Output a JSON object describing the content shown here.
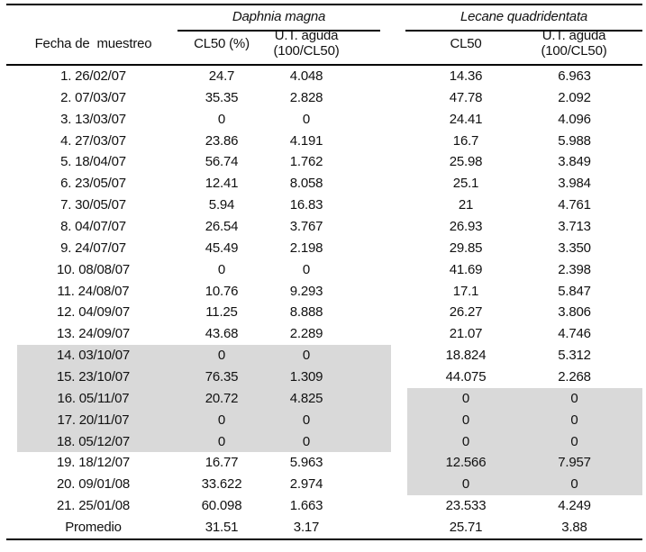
{
  "table": {
    "headers": {
      "date": "Fecha de  muestreo",
      "daphnia": {
        "name": "Daphnia magna",
        "cl50": "CL50 (%)",
        "ut_line1": "U.T. aguda",
        "ut_line2": "(100/CL50)"
      },
      "lecane": {
        "name": "Lecane quadridentata",
        "cl50": "CL50",
        "ut_line1": "U.T. aguda",
        "ut_line2": "(100/CL50)"
      }
    },
    "colors": {
      "highlight": "#d9d9d9",
      "rule": "#000000",
      "text": "#111111"
    },
    "rows": [
      {
        "date": "1. 26/02/07",
        "d_cl50": "24.7",
        "d_ut": "4.048",
        "l_cl50": "14.36",
        "l_ut": "6.963",
        "hl_left": false,
        "hl_right": false
      },
      {
        "date": "2. 07/03/07",
        "d_cl50": "35.35",
        "d_ut": "2.828",
        "l_cl50": "47.78",
        "l_ut": "2.092",
        "hl_left": false,
        "hl_right": false
      },
      {
        "date": "3. 13/03/07",
        "d_cl50": "0",
        "d_ut": "0",
        "l_cl50": "24.41",
        "l_ut": "4.096",
        "hl_left": false,
        "hl_right": false
      },
      {
        "date": "4. 27/03/07",
        "d_cl50": "23.86",
        "d_ut": "4.191",
        "l_cl50": "16.7",
        "l_ut": "5.988",
        "hl_left": false,
        "hl_right": false
      },
      {
        "date": "5. 18/04/07",
        "d_cl50": "56.74",
        "d_ut": "1.762",
        "l_cl50": "25.98",
        "l_ut": "3.849",
        "hl_left": false,
        "hl_right": false
      },
      {
        "date": "6. 23/05/07",
        "d_cl50": "12.41",
        "d_ut": "8.058",
        "l_cl50": "25.1",
        "l_ut": "3.984",
        "hl_left": false,
        "hl_right": false
      },
      {
        "date": "7. 30/05/07",
        "d_cl50": "5.94",
        "d_ut": "16.83",
        "l_cl50": "21",
        "l_ut": "4.761",
        "hl_left": false,
        "hl_right": false
      },
      {
        "date": "8. 04/07/07",
        "d_cl50": "26.54",
        "d_ut": "3.767",
        "l_cl50": "26.93",
        "l_ut": "3.713",
        "hl_left": false,
        "hl_right": false
      },
      {
        "date": "9. 24/07/07",
        "d_cl50": "45.49",
        "d_ut": "2.198",
        "l_cl50": "29.85",
        "l_ut": "3.350",
        "hl_left": false,
        "hl_right": false
      },
      {
        "date": "10. 08/08/07",
        "d_cl50": "0",
        "d_ut": "0",
        "l_cl50": "41.69",
        "l_ut": "2.398",
        "hl_left": false,
        "hl_right": false
      },
      {
        "date": "11. 24/08/07",
        "d_cl50": "10.76",
        "d_ut": "9.293",
        "l_cl50": "17.1",
        "l_ut": "5.847",
        "hl_left": false,
        "hl_right": false
      },
      {
        "date": "12. 04/09/07",
        "d_cl50": "11.25",
        "d_ut": "8.888",
        "l_cl50": "26.27",
        "l_ut": "3.806",
        "hl_left": false,
        "hl_right": false
      },
      {
        "date": "13. 24/09/07",
        "d_cl50": "43.68",
        "d_ut": "2.289",
        "l_cl50": "21.07",
        "l_ut": "4.746",
        "hl_left": false,
        "hl_right": false
      },
      {
        "date": "14. 03/10/07",
        "d_cl50": "0",
        "d_ut": "0",
        "l_cl50": "18.824",
        "l_ut": "5.312",
        "hl_left": true,
        "hl_right": false
      },
      {
        "date": "15. 23/10/07",
        "d_cl50": "76.35",
        "d_ut": "1.309",
        "l_cl50": "44.075",
        "l_ut": "2.268",
        "hl_left": true,
        "hl_right": false
      },
      {
        "date": "16. 05/11/07",
        "d_cl50": "20.72",
        "d_ut": "4.825",
        "l_cl50": "0",
        "l_ut": "0",
        "hl_left": true,
        "hl_right": true
      },
      {
        "date": "17. 20/11/07",
        "d_cl50": "0",
        "d_ut": "0",
        "l_cl50": "0",
        "l_ut": "0",
        "hl_left": true,
        "hl_right": true
      },
      {
        "date": "18. 05/12/07",
        "d_cl50": "0",
        "d_ut": "0",
        "l_cl50": "0",
        "l_ut": "0",
        "hl_left": true,
        "hl_right": true
      },
      {
        "date": "19. 18/12/07",
        "d_cl50": "16.77",
        "d_ut": "5.963",
        "l_cl50": "12.566",
        "l_ut": "7.957",
        "hl_left": false,
        "hl_right": true
      },
      {
        "date": "20. 09/01/08",
        "d_cl50": "33.622",
        "d_ut": "2.974",
        "l_cl50": "0",
        "l_ut": "0",
        "hl_left": false,
        "hl_right": true
      },
      {
        "date": "21. 25/01/08",
        "d_cl50": "60.098",
        "d_ut": "1.663",
        "l_cl50": "23.533",
        "l_ut": "4.249",
        "hl_left": false,
        "hl_right": false
      },
      {
        "date": "Promedio",
        "d_cl50": "31.51",
        "d_ut": "3.17",
        "l_cl50": "25.71",
        "l_ut": "3.88",
        "hl_left": false,
        "hl_right": false
      }
    ]
  }
}
